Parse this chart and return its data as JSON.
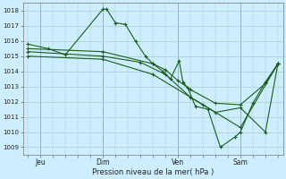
{
  "xlabel": "Pression niveau de la mer( hPa )",
  "bg_color": "#cceeff",
  "grid_color": "#aacccc",
  "line_color": "#1a5c1a",
  "ylim": [
    1008.5,
    1018.5
  ],
  "yticks": [
    1009,
    1010,
    1011,
    1012,
    1013,
    1014,
    1015,
    1016,
    1017,
    1018
  ],
  "xlim": [
    -0.2,
    10.2
  ],
  "xtick_labels": [
    "Jeu",
    "Dim",
    "Ven",
    "Sam"
  ],
  "xtick_positions": [
    0.5,
    3.0,
    6.0,
    8.5
  ],
  "vlines": [
    0.5,
    3.0,
    6.0,
    8.5
  ],
  "series": [
    {
      "x": [
        0.0,
        0.8,
        1.5,
        3.0,
        3.15,
        3.5,
        3.9,
        4.3,
        4.7,
        5.0,
        5.4,
        5.7,
        6.05,
        6.2,
        6.4,
        6.7,
        7.2,
        7.7,
        8.3,
        8.5,
        9.0,
        9.5,
        10.0
      ],
      "y": [
        1015.8,
        1015.5,
        1015.1,
        1018.1,
        1018.1,
        1017.2,
        1017.1,
        1016.0,
        1015.0,
        1014.5,
        1014.0,
        1013.5,
        1014.7,
        1013.3,
        1012.9,
        1011.7,
        1011.5,
        1009.0,
        1009.7,
        1010.0,
        1011.9,
        1013.3,
        1014.5
      ]
    },
    {
      "x": [
        0.0,
        3.0,
        5.0,
        5.5,
        6.0,
        6.5,
        7.5,
        8.5,
        9.5,
        10.0
      ],
      "y": [
        1015.5,
        1015.3,
        1014.5,
        1014.1,
        1013.4,
        1012.8,
        1011.9,
        1011.8,
        1013.2,
        1014.5
      ]
    },
    {
      "x": [
        0.0,
        3.0,
        4.5,
        5.5,
        6.5,
        7.5,
        8.5,
        9.5,
        10.0
      ],
      "y": [
        1015.3,
        1015.0,
        1014.6,
        1013.8,
        1012.3,
        1011.3,
        1011.6,
        1010.0,
        1014.5
      ]
    },
    {
      "x": [
        0.0,
        3.0,
        5.0,
        7.0,
        8.5,
        10.0
      ],
      "y": [
        1015.0,
        1014.8,
        1013.8,
        1011.8,
        1010.3,
        1014.5
      ]
    }
  ]
}
